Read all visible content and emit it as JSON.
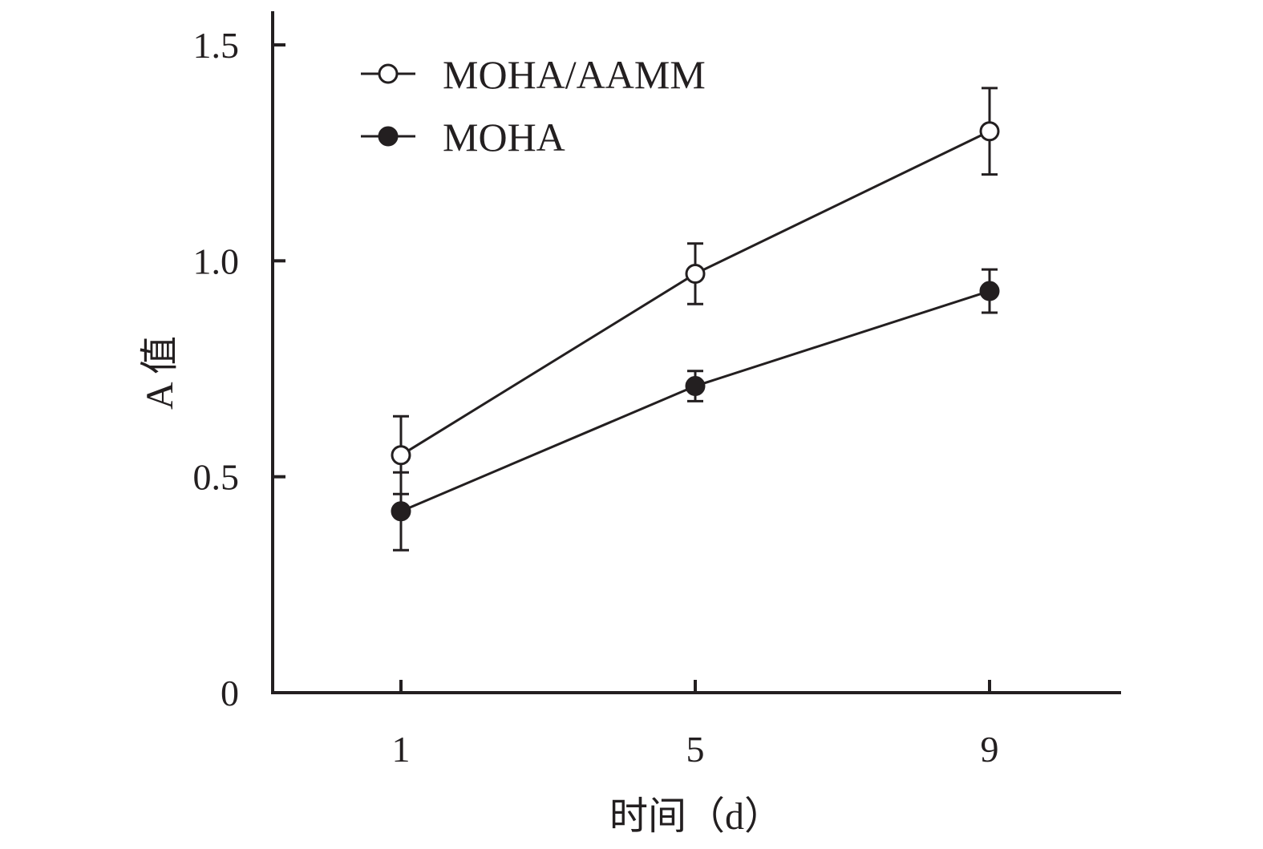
{
  "chart_data": {
    "type": "line",
    "x": [
      1,
      5,
      9
    ],
    "xlabel": "时间（d）",
    "ylabel": "A 值",
    "ylim": [
      0,
      1.5
    ],
    "yticks": [
      "0",
      "0.5",
      "1.0",
      "1.5"
    ],
    "xticks": [
      "1",
      "5",
      "9"
    ],
    "legend_position": "top-left",
    "series": [
      {
        "name": "MOHA/AAMM",
        "marker": "open-circle",
        "values": [
          0.55,
          0.97,
          1.3
        ],
        "errors": [
          0.09,
          0.07,
          0.1
        ]
      },
      {
        "name": "MOHA",
        "marker": "filled-circle",
        "values": [
          0.42,
          0.71,
          0.93
        ],
        "errors": [
          0.09,
          0.035,
          0.05
        ]
      }
    ],
    "colors": {
      "ink": "#231f20",
      "background": "#ffffff"
    }
  }
}
